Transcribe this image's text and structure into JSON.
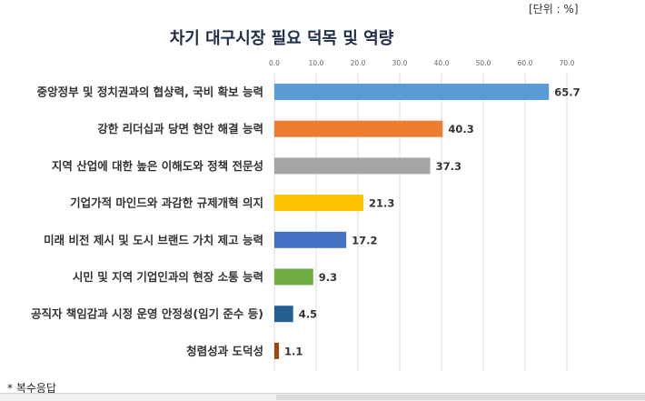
{
  "unit_label": "[단위 : %]",
  "footnote": "*  복수응답",
  "chart_data": {
    "type": "bar",
    "orientation": "horizontal",
    "title": "차기 대구시장 필요 덕목 및 역량",
    "xlabel": "",
    "ylabel": "",
    "xlim": [
      0,
      70
    ],
    "ticks": [
      "0.0",
      "10.0",
      "20.0",
      "30.0",
      "40.0",
      "50.0",
      "60.0",
      "70.0"
    ],
    "grid": true,
    "tick_position": "top",
    "categories": [
      "중앙정부 및 정치권과의 협상력, 국비 확보 능력",
      "강한 리더십과 당면 현안 해결 능력",
      "지역 산업에 대한 높은 이해도와 정책 전문성",
      "기업가적 마인드와 과감한 규제개혁 의지",
      "미래 비전 제시 및 도시 브랜드 가치 제고 능력",
      "시민 및 지역 기업인과의 현장 소통 능력",
      "공직자 책임감과 시정 운영 안정성(임기 준수 등)",
      "청렴성과 도덕성"
    ],
    "values": [
      65.7,
      40.3,
      37.3,
      21.3,
      17.2,
      9.3,
      4.5,
      1.1
    ],
    "data_labels": [
      "65.7",
      "40.3",
      "37.3",
      "21.3",
      "17.2",
      "9.3",
      "4.5",
      "1.1"
    ],
    "colors": [
      "#5b9bd5",
      "#ed7d31",
      "#a5a5a5",
      "#ffc000",
      "#4472c4",
      "#70ad47",
      "#255e91",
      "#9e480e"
    ]
  }
}
